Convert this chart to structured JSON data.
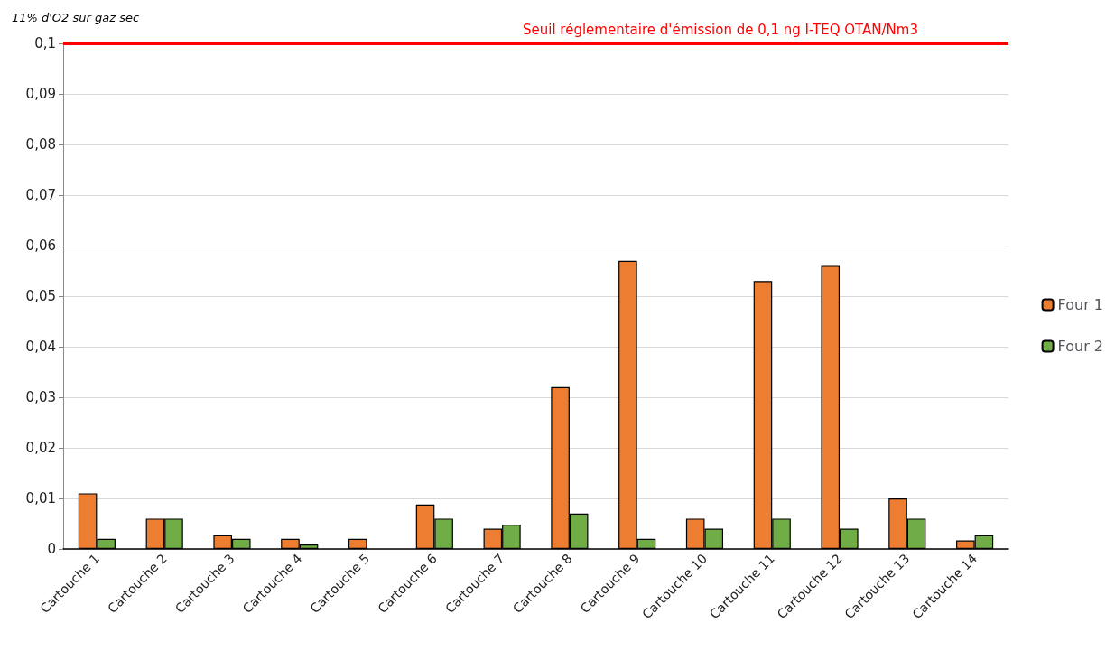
{
  "chart_data": {
    "type": "bar",
    "ylabel": "11% d'O2 sur gaz sec",
    "categories": [
      "Cartouche 1",
      "Cartouche 2",
      "Cartouche 3",
      "Cartouche 4",
      "Cartouche 5",
      "Cartouche 6",
      "Cartouche 7",
      "Cartouche 8",
      "Cartouche 9",
      "Cartouche 10",
      "Cartouche 11",
      "Cartouche 12",
      "Cartouche 13",
      "Cartouche 14"
    ],
    "series": [
      {
        "name": "Four 1",
        "color": "#ed7d31",
        "values": [
          0.011,
          0.006,
          0.0027,
          0.002,
          0.002,
          0.0088,
          0.004,
          0.032,
          0.057,
          0.006,
          0.053,
          0.056,
          0.01,
          0.0017
        ]
      },
      {
        "name": "Four 2",
        "color": "#70ad47",
        "values": [
          0.002,
          0.006,
          0.002,
          0.0009,
          null,
          0.006,
          0.0048,
          0.007,
          0.002,
          0.004,
          0.006,
          0.004,
          0.006,
          0.0027
        ]
      }
    ],
    "ylim": [
      0,
      0.1
    ],
    "yticks": [
      0,
      {
        "value": 0.01,
        "label": "0,01"
      },
      {
        "value": 0.02,
        "label": "0,02"
      },
      {
        "value": 0.03,
        "label": "0,03"
      },
      {
        "value": 0.04,
        "label": "0,04"
      },
      {
        "value": 0.05,
        "label": "0,05"
      },
      {
        "value": 0.06,
        "label": "0,06"
      },
      {
        "value": 0.07,
        "label": "0,07"
      },
      {
        "value": 0.08,
        "label": "0,08"
      },
      {
        "value": 0.09,
        "label": "0,09"
      },
      {
        "value": 0.1,
        "label": "0,1"
      }
    ],
    "ref_lines": [
      {
        "axis": "y",
        "value": 0.1,
        "label": "Seuil réglementaire d'émission de 0,1 ng I-TEQ OTAN/Nm3",
        "color": "#ff0000",
        "line_style": "solid"
      }
    ],
    "grid": "y",
    "legend": "right"
  }
}
